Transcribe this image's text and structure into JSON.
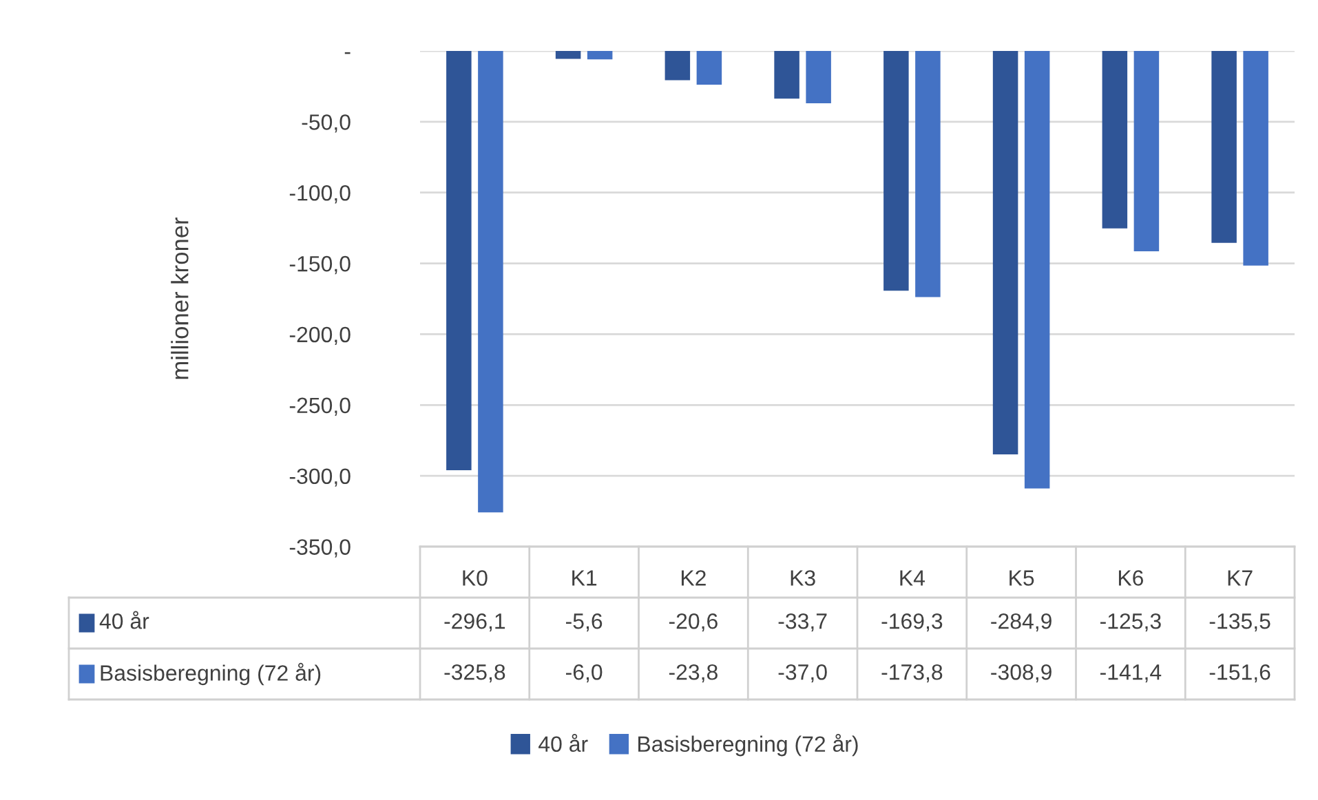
{
  "chart_data": {
    "type": "bar",
    "ylabel": "millioner kroner",
    "categories": [
      "K0",
      "K1",
      "K2",
      "K3",
      "K4",
      "K5",
      "K6",
      "K7"
    ],
    "series": [
      {
        "name": "40 år",
        "color": "#2f5597",
        "values": [
          -296.1,
          -5.6,
          -20.6,
          -33.7,
          -169.3,
          -284.9,
          -125.3,
          -135.5
        ],
        "value_labels": [
          "-296,1",
          "-5,6",
          "-20,6",
          "-33,7",
          "-169,3",
          "-284,9",
          "-125,3",
          "-135,5"
        ]
      },
      {
        "name": "Basisberegning (72 år)",
        "color": "#4472c4",
        "values": [
          -325.8,
          -6.0,
          -23.8,
          -37.0,
          -173.8,
          -308.9,
          -141.4,
          -151.6
        ],
        "value_labels": [
          "-325,8",
          "-6,0",
          "-23,8",
          "-37,0",
          "-173,8",
          "-308,9",
          "-141,4",
          "-151,6"
        ]
      }
    ],
    "ylim": [
      -350,
      0
    ],
    "yticks": [
      {
        "value": 0,
        "label": "-"
      },
      {
        "value": -50,
        "label": "-50,0"
      },
      {
        "value": -100,
        "label": "-100,0"
      },
      {
        "value": -150,
        "label": "-150,0"
      },
      {
        "value": -200,
        "label": "-200,0"
      },
      {
        "value": -250,
        "label": "-250,0"
      },
      {
        "value": -300,
        "label": "-300,0"
      },
      {
        "value": -350,
        "label": "-350,0"
      }
    ],
    "grid": "y",
    "legend": "bottom"
  }
}
